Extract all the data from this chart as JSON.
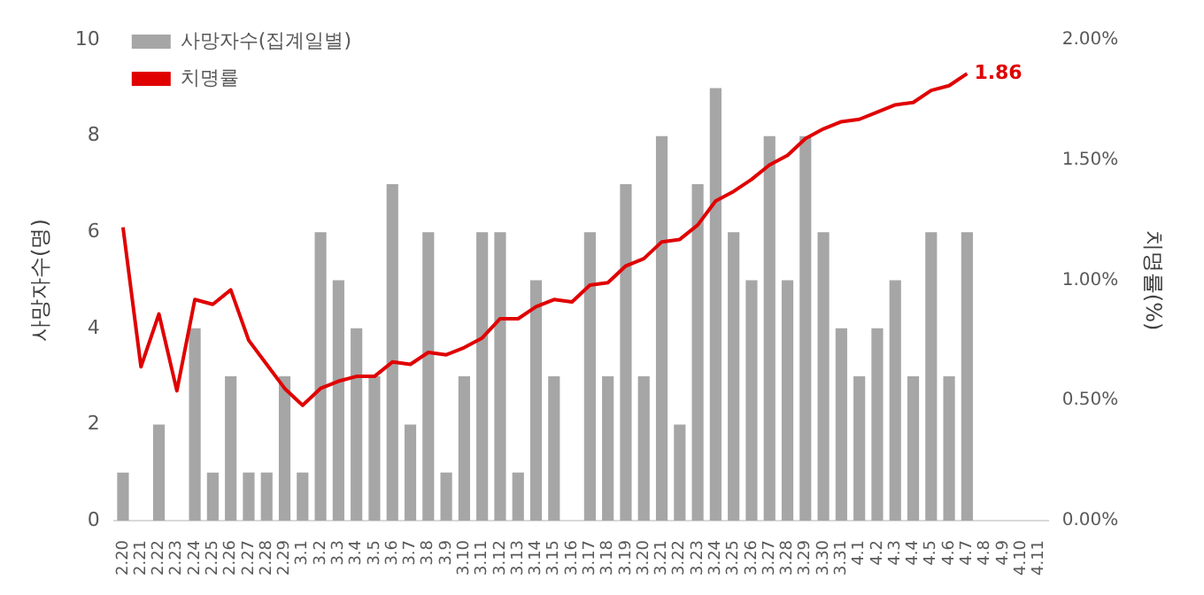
{
  "chart_data": {
    "type": "bar",
    "ylabel": "사망자수(명)",
    "y2label": "치명률(%)",
    "categories": [
      "2.20",
      "2.21",
      "2.22",
      "2.23",
      "2.24",
      "2.25",
      "2.26",
      "2.27",
      "2.28",
      "2.29",
      "3.1",
      "3.2",
      "3.3",
      "3.4",
      "3.5",
      "3.6",
      "3.7",
      "3.8",
      "3.9",
      "3.10",
      "3.11",
      "3.12",
      "3.13",
      "3.14",
      "3.15",
      "3.16",
      "3.17",
      "3.18",
      "3.19",
      "3.20",
      "3.21",
      "3.22",
      "3.23",
      "3.24",
      "3.25",
      "3.26",
      "3.27",
      "3.28",
      "3.29",
      "3.30",
      "3.31",
      "4.1",
      "4.2",
      "4.3",
      "4.4",
      "4.5",
      "4.6",
      "4.7",
      "4.8",
      "4.9",
      "4.10",
      "4.11"
    ],
    "series": [
      {
        "name": "사망자수(집계일별)",
        "color": "#a6a6a6",
        "values": [
          1,
          0,
          2,
          0,
          4,
          1,
          3,
          1,
          1,
          3,
          1,
          6,
          5,
          4,
          3,
          7,
          2,
          6,
          1,
          3,
          6,
          6,
          1,
          5,
          3,
          0,
          6,
          3,
          7,
          3,
          8,
          2,
          7,
          9,
          6,
          5,
          8,
          5,
          8,
          6,
          4,
          3,
          4,
          5,
          3,
          6,
          3,
          6,
          null,
          null,
          null,
          null
        ]
      },
      {
        "name": "치명률",
        "type": "line",
        "axis": "y2",
        "color": "#e00000",
        "values": [
          1.22,
          0.64,
          0.86,
          0.54,
          0.92,
          0.9,
          0.96,
          0.75,
          0.65,
          0.55,
          0.48,
          0.55,
          0.58,
          0.6,
          0.6,
          0.66,
          0.65,
          0.7,
          0.69,
          0.72,
          0.76,
          0.84,
          0.84,
          0.89,
          0.92,
          0.91,
          0.98,
          0.99,
          1.06,
          1.09,
          1.16,
          1.17,
          1.23,
          1.33,
          1.37,
          1.42,
          1.48,
          1.52,
          1.59,
          1.63,
          1.66,
          1.67,
          1.7,
          1.73,
          1.74,
          1.79,
          1.81,
          1.86,
          null,
          null,
          null,
          null
        ],
        "value_labels": [
          null,
          null,
          null,
          null,
          null,
          null,
          null,
          null,
          null,
          null,
          null,
          null,
          null,
          null,
          null,
          null,
          null,
          null,
          null,
          null,
          null,
          null,
          null,
          null,
          null,
          null,
          null,
          null,
          null,
          null,
          null,
          null,
          null,
          null,
          null,
          null,
          null,
          null,
          null,
          null,
          null,
          null,
          null,
          null,
          null,
          null,
          null,
          "1.86",
          null,
          null,
          null,
          null
        ]
      }
    ],
    "ylim": [
      0,
      10
    ],
    "yticks": [
      0,
      2,
      4,
      6,
      8,
      10
    ],
    "y2lim": [
      0,
      2
    ],
    "y2ticks": [
      {
        "value": 0,
        "label": "0.00%"
      },
      {
        "value": 0.5,
        "label": "0.50%"
      },
      {
        "value": 1,
        "label": "1.00%"
      },
      {
        "value": 1.5,
        "label": "1.50%"
      },
      {
        "value": 2,
        "label": "2.00%"
      }
    ],
    "legend": "top left",
    "grid": false,
    "marker": "none",
    "line_style": "solid"
  }
}
